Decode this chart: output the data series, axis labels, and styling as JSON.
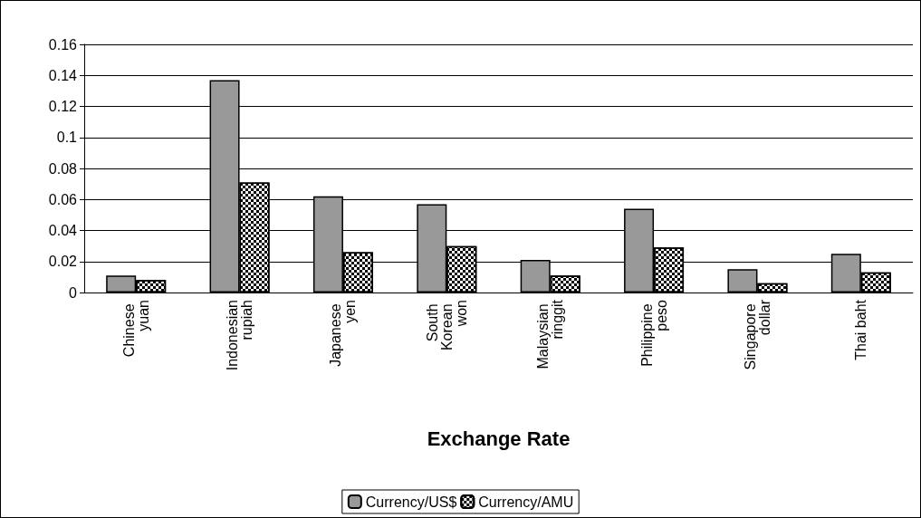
{
  "chart_data": {
    "type": "bar",
    "xlabel": "Exchange Rate",
    "categories": [
      "Chinese yuan",
      "Indonesian rupiah",
      "Japanese yen",
      "South Korean won",
      "Malaysian ringgit",
      "Philippine peso",
      "Singapore dollar",
      "Thai baht"
    ],
    "series": [
      {
        "name": "Currency/US$",
        "color": "#999999",
        "values": [
          0.011,
          0.137,
          0.062,
          0.057,
          0.021,
          0.054,
          0.015,
          0.025
        ]
      },
      {
        "name": "Currency/AMU",
        "color": "#ffffff",
        "values": [
          0.008,
          0.071,
          0.026,
          0.03,
          0.011,
          0.029,
          0.006,
          0.013
        ]
      }
    ],
    "ylim": [
      0,
      0.16
    ],
    "yticks": [
      0,
      0.02,
      0.04,
      0.06,
      0.08,
      0.1,
      0.12,
      0.14,
      0.16
    ],
    "grid": "y",
    "legend": "bottom"
  }
}
